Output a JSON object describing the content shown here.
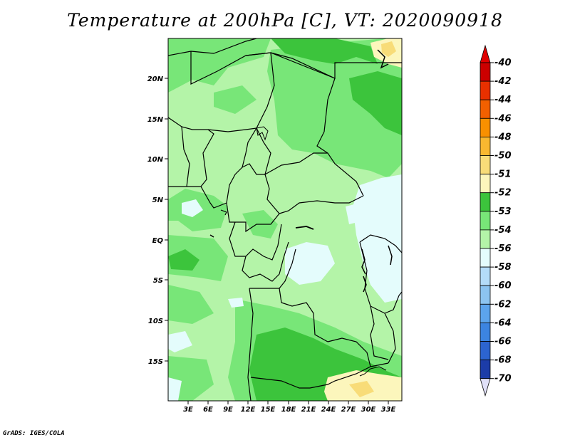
{
  "title": "Temperature at 200hPa [C], VT: 2020090918",
  "footer": "GrADS: IGES/COLA",
  "map": {
    "lat_labels": [
      "20N",
      "15N",
      "10N",
      "5N",
      "EQ",
      "5S",
      "10S",
      "15S"
    ],
    "lon_labels": [
      "3E",
      "6E",
      "9E",
      "12E",
      "15E",
      "18E",
      "21E",
      "24E",
      "27E",
      "30E",
      "33E"
    ]
  },
  "legend": {
    "items": [
      {
        "label": "-40",
        "color": "#cc0000"
      },
      {
        "label": "-42",
        "color": "#e83000"
      },
      {
        "label": "-44",
        "color": "#f26000"
      },
      {
        "label": "-46",
        "color": "#f89000"
      },
      {
        "label": "-48",
        "color": "#f8b830"
      },
      {
        "label": "-50",
        "color": "#f8dc78"
      },
      {
        "label": "-51",
        "color": "#fcf6bc"
      },
      {
        "label": "-52",
        "color": "#3cc43c"
      },
      {
        "label": "-53",
        "color": "#78e678"
      },
      {
        "label": "-54",
        "color": "#b4f4a8"
      },
      {
        "label": "-56",
        "color": "#e4fcfc"
      },
      {
        "label": "-58",
        "color": "#b4dcf8"
      },
      {
        "label": "-60",
        "color": "#8cc4f0"
      },
      {
        "label": "-62",
        "color": "#5ca4ec"
      },
      {
        "label": "-64",
        "color": "#3c84e0"
      },
      {
        "label": "-66",
        "color": "#2c64d0"
      },
      {
        "label": "-68",
        "color": "#1c3ca8"
      },
      {
        "label": "-70",
        "color": "#0c1c78"
      }
    ],
    "top_arrow_color": "#e00000",
    "bottom_arrow_color": "#e0e0f8"
  }
}
